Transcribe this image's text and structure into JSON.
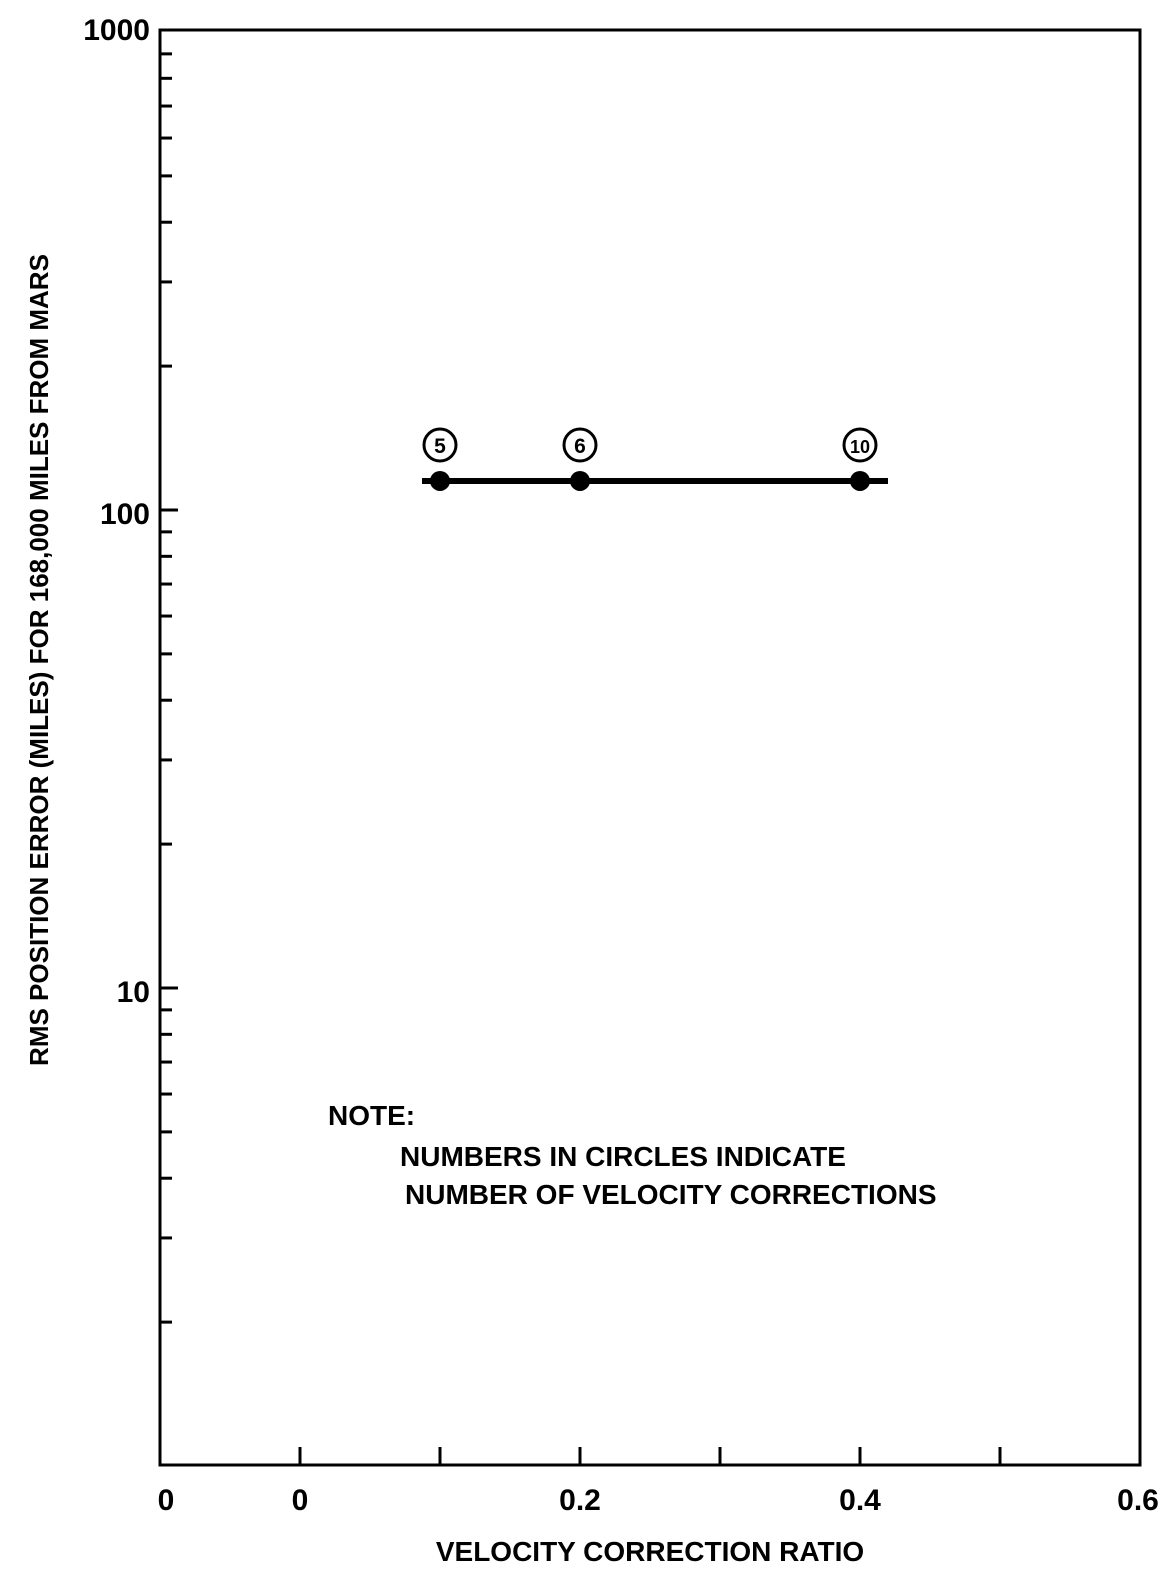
{
  "chart_data": {
    "type": "line",
    "title": "",
    "xlabel": "VELOCITY CORRECTION RATIO",
    "ylabel": "RMS POSITION ERROR  (MILES) FOR 168,000 MILES FROM MARS",
    "y_scale": "log",
    "ylim": [
      1,
      1000
    ],
    "y_tick_labels": [
      "10",
      "100",
      "1000"
    ],
    "x_tick_labels": [
      "0",
      "0",
      "0.2",
      "0.4",
      "0.6"
    ],
    "grid": false,
    "series": [
      {
        "x": [
          0.1,
          0.2,
          0.4
        ],
        "y": [
          115,
          115,
          115
        ],
        "point_labels": [
          "5",
          "6",
          "10"
        ]
      }
    ],
    "note": {
      "heading": "NOTE:",
      "line1": "NUMBERS IN CIRCLES INDICATE",
      "line2": "NUMBER OF VELOCITY CORRECTIONS"
    }
  }
}
